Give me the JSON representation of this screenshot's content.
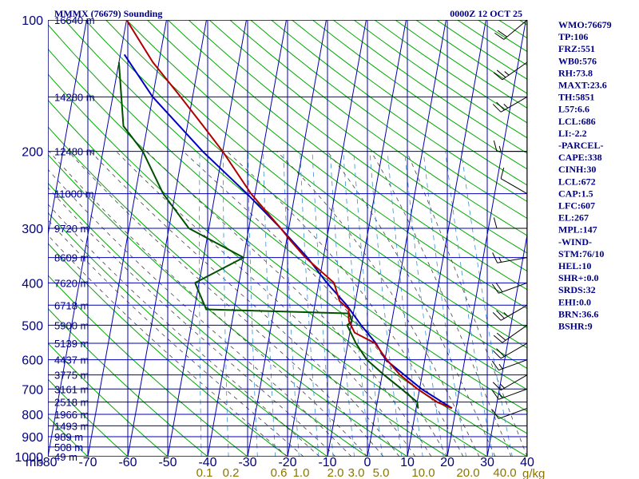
{
  "header": {
    "title": "MMMX (76679) Sounding",
    "valid_time": "0000Z 12 OCT 25"
  },
  "stats": [
    "WMO:76679",
    "TP:106",
    "FRZ:551",
    "WB0:576",
    "RH:73.8",
    "MAXT:23.6",
    "TH:5851",
    "L57:6.6",
    "LCL:686",
    "LI:-2.2",
    "-PARCEL-",
    "CAPE:338",
    "CINH:30",
    "LCL:672",
    "CAP:1.5",
    "LFC:607",
    "EL:267",
    "MPL:147",
    "-WIND-",
    "STM:76/10",
    "HEL:10",
    "SHR+:0.0",
    "SRDS:32",
    "EHI:0.0",
    "BRN:36.6",
    "BSHR:9"
  ],
  "colors": {
    "frame": "#000080",
    "isobar": "#0000b0",
    "isotherm": "#0000b0",
    "dry_adiabat": "#00aa00",
    "moist_adiabat": "#444444",
    "mixing_ratio": "#3a8fd0",
    "temperature": "#b00000",
    "dewpoint": "#005000",
    "parcel": "#0000c0",
    "wind_barb": "#000000"
  },
  "chart_data": {
    "type": "skew-t",
    "x_unit_label": "mb",
    "pressure_ticks": [
      "100",
      "200",
      "300",
      "400",
      "500",
      "600",
      "700",
      "800",
      "900",
      "1000"
    ],
    "temperature_ticks": [
      "-80",
      "-70",
      "-60",
      "-50",
      "-40",
      "-30",
      "-20",
      "-10",
      "0",
      "10",
      "20",
      "30",
      "40"
    ],
    "mixing_ratio_ticks": [
      "0.1",
      "0.2",
      "0.6",
      "1.0",
      "2.0",
      "3.0",
      "5.0",
      "10.0",
      "20.0",
      "40.0"
    ],
    "mixing_ratio_unit": "g/kg",
    "height_labels": [
      {
        "p": 100,
        "label": "16640 m"
      },
      {
        "p": 150,
        "label": "14280 m"
      },
      {
        "p": 200,
        "label": "12480 m"
      },
      {
        "p": 250,
        "label": "11000 m"
      },
      {
        "p": 300,
        "label": "9720 m"
      },
      {
        "p": 350,
        "label": "8609 m"
      },
      {
        "p": 400,
        "label": "7620 m"
      },
      {
        "p": 450,
        "label": "6718 m"
      },
      {
        "p": 500,
        "label": "5900 m"
      },
      {
        "p": 550,
        "label": "5139 m"
      },
      {
        "p": 600,
        "label": "4437 m"
      },
      {
        "p": 650,
        "label": "3775 m"
      },
      {
        "p": 700,
        "label": "3161 m"
      },
      {
        "p": 750,
        "label": "2518 m"
      },
      {
        "p": 800,
        "label": "1966 m"
      },
      {
        "p": 850,
        "label": "1493 m"
      },
      {
        "p": 900,
        "label": "989 m"
      },
      {
        "p": 950,
        "label": "508 m"
      },
      {
        "p": 1000,
        "label": "49 m"
      }
    ],
    "temperature_profile": [
      {
        "p": 775,
        "t": 19.0
      },
      {
        "p": 750,
        "t": 15.0
      },
      {
        "p": 700,
        "t": 9.5
      },
      {
        "p": 650,
        "t": 4.5
      },
      {
        "p": 600,
        "t": 0.5
      },
      {
        "p": 550,
        "t": -3.2
      },
      {
        "p": 520,
        "t": -8.8
      },
      {
        "p": 490,
        "t": -10.7
      },
      {
        "p": 480,
        "t": -11.0
      },
      {
        "p": 460,
        "t": -11.3
      },
      {
        "p": 440,
        "t": -14.0
      },
      {
        "p": 400,
        "t": -16.2
      },
      {
        "p": 350,
        "t": -24.5
      },
      {
        "p": 320,
        "t": -29.0
      },
      {
        "p": 300,
        "t": -32.0
      },
      {
        "p": 250,
        "t": -41.0
      },
      {
        "p": 200,
        "t": -50.0
      },
      {
        "p": 175,
        "t": -56.0
      },
      {
        "p": 150,
        "t": -63.0
      },
      {
        "p": 125,
        "t": -71.5
      },
      {
        "p": 100,
        "t": -80.0
      }
    ],
    "dewpoint_profile": [
      {
        "p": 775,
        "t": 10.5
      },
      {
        "p": 750,
        "t": 10.0
      },
      {
        "p": 700,
        "t": 5.5
      },
      {
        "p": 650,
        "t": 0.5
      },
      {
        "p": 600,
        "t": -4.5
      },
      {
        "p": 550,
        "t": -8.0
      },
      {
        "p": 500,
        "t": -11.0
      },
      {
        "p": 490,
        "t": -10.0
      },
      {
        "p": 470,
        "t": -11.0
      },
      {
        "p": 460,
        "t": -47.0
      },
      {
        "p": 400,
        "t": -51.0
      },
      {
        "p": 350,
        "t": -40.0
      },
      {
        "p": 300,
        "t": -55.0
      },
      {
        "p": 250,
        "t": -63.0
      },
      {
        "p": 200,
        "t": -70.0
      },
      {
        "p": 175,
        "t": -76.0
      },
      {
        "p": 125,
        "t": -80.0
      }
    ],
    "parcel_profile": [
      {
        "p": 775,
        "t": 19.0
      },
      {
        "p": 700,
        "t": 10.5
      },
      {
        "p": 600,
        "t": 0.2
      },
      {
        "p": 550,
        "t": -3.0
      },
      {
        "p": 500,
        "t": -7.5
      },
      {
        "p": 450,
        "t": -12.0
      },
      {
        "p": 400,
        "t": -18.0
      },
      {
        "p": 350,
        "t": -24.0
      },
      {
        "p": 300,
        "t": -32.0
      },
      {
        "p": 250,
        "t": -42.0
      },
      {
        "p": 200,
        "t": -55.0
      },
      {
        "p": 150,
        "t": -70.0
      },
      {
        "p": 120,
        "t": -79.0
      }
    ],
    "wind_barbs": [
      {
        "p": 775,
        "dir": 250,
        "spd": 10
      },
      {
        "p": 700,
        "dir": 250,
        "spd": 15
      },
      {
        "p": 650,
        "dir": 240,
        "spd": 15
      },
      {
        "p": 600,
        "dir": 250,
        "spd": 15
      },
      {
        "p": 550,
        "dir": 240,
        "spd": 20
      },
      {
        "p": 500,
        "dir": 235,
        "spd": 20
      },
      {
        "p": 450,
        "dir": 240,
        "spd": 25
      },
      {
        "p": 400,
        "dir": 250,
        "spd": 20
      },
      {
        "p": 350,
        "dir": 260,
        "spd": 15
      },
      {
        "p": 300,
        "dir": 270,
        "spd": 10
      },
      {
        "p": 250,
        "dir": 300,
        "spd": 10
      },
      {
        "p": 200,
        "dir": 270,
        "spd": 15
      },
      {
        "p": 150,
        "dir": 240,
        "spd": 25
      },
      {
        "p": 125,
        "dir": 235,
        "spd": 25
      },
      {
        "p": 100,
        "dir": 230,
        "spd": 20
      }
    ]
  }
}
